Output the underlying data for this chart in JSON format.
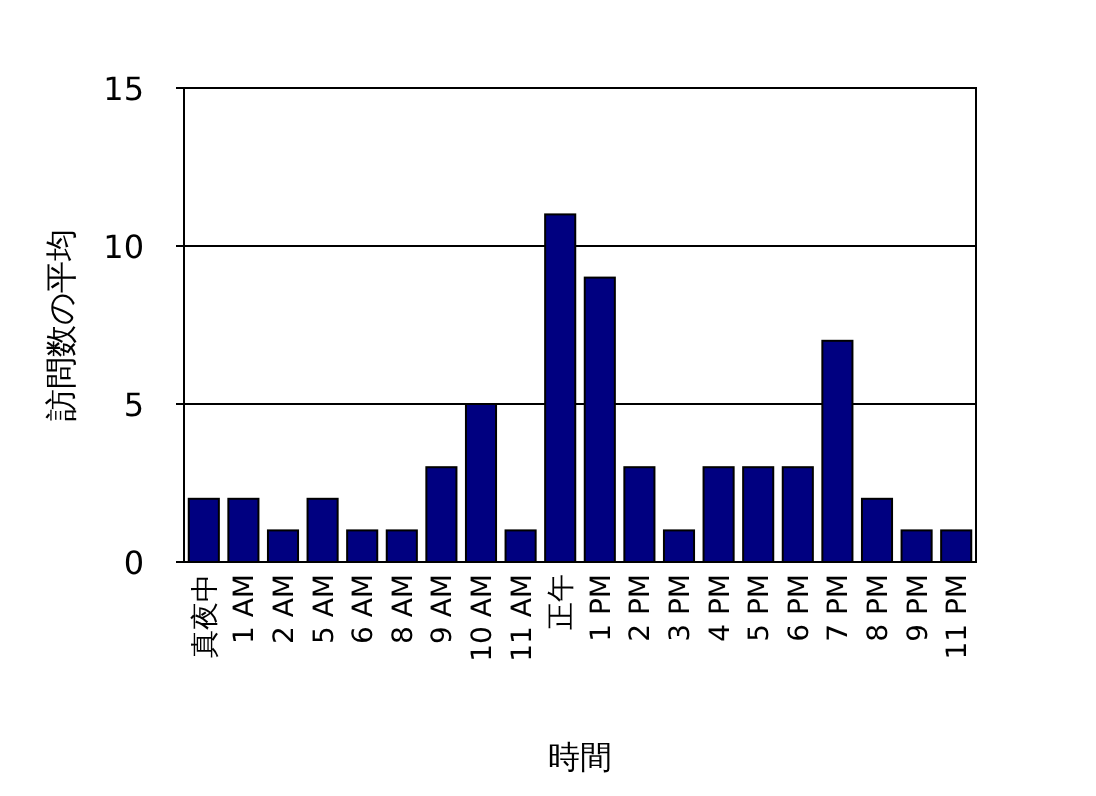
{
  "chart_data": {
    "type": "bar",
    "xlabel": "時間",
    "ylabel": "訪問数の平均",
    "categories": [
      "真夜中",
      "1 AM",
      "2 AM",
      "5 AM",
      "6 AM",
      "8 AM",
      "9 AM",
      "10 AM",
      "11 AM",
      "正午",
      "1 PM",
      "2 PM",
      "3 PM",
      "4 PM",
      "5 PM",
      "6 PM",
      "7 PM",
      "8 PM",
      "9 PM",
      "11 PM"
    ],
    "values": [
      2,
      2,
      1,
      2,
      1,
      1,
      3,
      5,
      1,
      11,
      9,
      3,
      1,
      3,
      3,
      3,
      7,
      2,
      1,
      1
    ],
    "color": "#000080",
    "ylim": [
      0,
      15
    ],
    "yticks": [
      0,
      5,
      10,
      15
    ],
    "grid": "y"
  }
}
